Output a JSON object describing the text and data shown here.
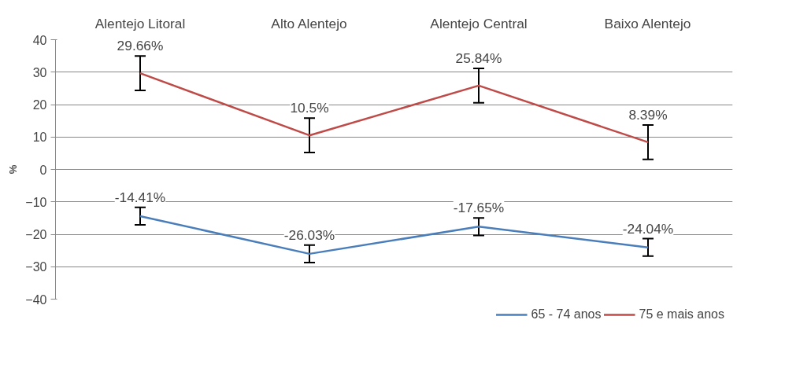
{
  "chart_data": {
    "type": "line",
    "ylabel": "%",
    "categories": [
      "Alentejo Litoral",
      "Alto Alentejo",
      "Alentejo Central",
      "Baixo Alentejo"
    ],
    "series": [
      {
        "name": "65 - 74 anos",
        "color": "#4a7ebb",
        "values": [
          -14.41,
          -26.03,
          -17.65,
          -24.04
        ],
        "errors": [
          2.7,
          2.7,
          2.7,
          2.7
        ],
        "value_labels": [
          "-14.41%",
          "-26.03%",
          "-17.65%",
          "-24.04%"
        ]
      },
      {
        "name": "75 e mais anos",
        "color": "#be4b48",
        "values": [
          29.66,
          10.5,
          25.84,
          8.39
        ],
        "errors": [
          5.3,
          5.3,
          5.3,
          5.3
        ],
        "value_labels": [
          "29.66%",
          "10.5%",
          "25.84%",
          "8.39%"
        ]
      }
    ],
    "ylim": [
      -40,
      40
    ],
    "yticks": [
      -40,
      -30,
      -20,
      -10,
      0,
      10,
      20,
      30,
      40
    ],
    "grid": "y",
    "legend": "bottom",
    "marker": "none",
    "line_style": "solid"
  }
}
